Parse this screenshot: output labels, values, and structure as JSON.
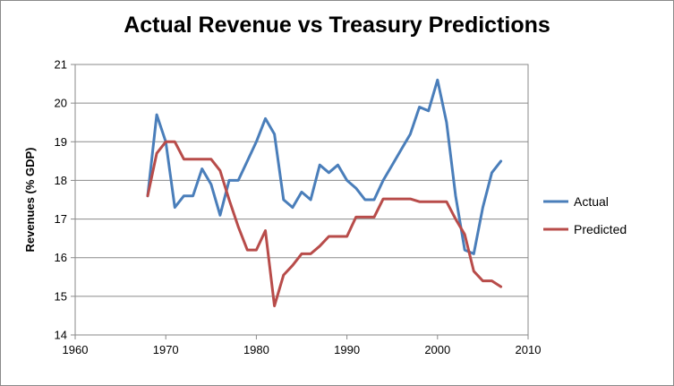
{
  "chart_data": {
    "type": "line",
    "title": "Actual Revenue vs Treasury Predictions",
    "xlabel": "",
    "ylabel": "Revenues (% GDP)",
    "xlim": [
      1960,
      2010
    ],
    "ylim": [
      14,
      21
    ],
    "xticks": [
      1960,
      1970,
      1980,
      1990,
      2000,
      2010
    ],
    "yticks": [
      14,
      15,
      16,
      17,
      18,
      19,
      20,
      21
    ],
    "grid": "horizontal",
    "legend": "right",
    "series": [
      {
        "name": "Actual",
        "color": "#4a7eba",
        "x": [
          1968,
          1969,
          1970,
          1971,
          1972,
          1973,
          1974,
          1975,
          1976,
          1977,
          1978,
          1979,
          1980,
          1981,
          1982,
          1983,
          1984,
          1985,
          1986,
          1987,
          1988,
          1989,
          1990,
          1991,
          1992,
          1993,
          1994,
          1995,
          1996,
          1997,
          1998,
          1999,
          2000,
          2001,
          2002,
          2003,
          2004,
          2005,
          2006,
          2007
        ],
        "y": [
          17.6,
          19.7,
          19.0,
          17.3,
          17.6,
          17.6,
          18.3,
          17.9,
          17.1,
          18.0,
          18.0,
          18.5,
          19.0,
          19.6,
          19.2,
          17.5,
          17.3,
          17.7,
          17.5,
          18.4,
          18.2,
          18.4,
          18.0,
          17.8,
          17.5,
          17.5,
          18.0,
          18.4,
          18.8,
          19.2,
          19.9,
          19.8,
          20.6,
          19.5,
          17.6,
          16.2,
          16.1,
          17.3,
          18.2,
          18.5
        ]
      },
      {
        "name": "Predicted",
        "color": "#b84c4a",
        "x": [
          1968,
          1969,
          1970,
          1971,
          1972,
          1973,
          1974,
          1975,
          1976,
          1977,
          1978,
          1979,
          1980,
          1981,
          1982,
          1983,
          1984,
          1985,
          1986,
          1987,
          1988,
          1989,
          1990,
          1991,
          1992,
          1993,
          1994,
          1995,
          1996,
          1997,
          1998,
          1999,
          2000,
          2001,
          2002,
          2003,
          2004,
          2005,
          2006,
          2007
        ],
        "y": [
          17.6,
          18.7,
          19.0,
          19.0,
          18.55,
          18.55,
          18.55,
          18.55,
          18.25,
          17.5,
          16.8,
          16.2,
          16.2,
          16.7,
          14.75,
          15.55,
          15.8,
          16.1,
          16.1,
          16.3,
          16.55,
          16.55,
          16.55,
          17.05,
          17.05,
          17.05,
          17.52,
          17.52,
          17.52,
          17.52,
          17.45,
          17.45,
          17.45,
          17.45,
          17.0,
          16.6,
          15.65,
          15.4,
          15.4,
          15.25
        ]
      }
    ]
  }
}
